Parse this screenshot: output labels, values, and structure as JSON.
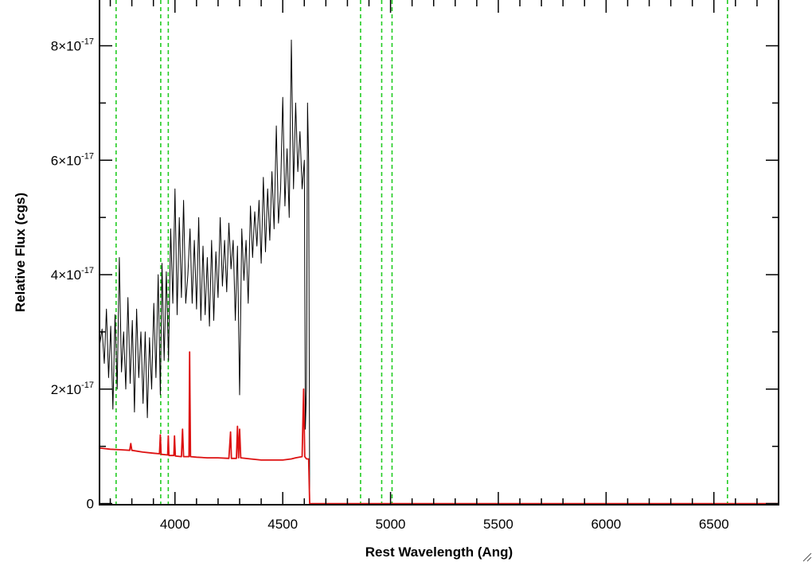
{
  "chart_data": {
    "type": "line",
    "title": "",
    "xlabel": "Rest Wavelength (Ang)",
    "ylabel": "Relative Flux (cgs)",
    "xlim": [
      3650,
      6800
    ],
    "ylim": [
      -2e-19,
      8.8e-17
    ],
    "x_ticks": [
      4000,
      4500,
      5000,
      5500,
      6000,
      6500
    ],
    "x_tick_labels": [
      "4000",
      "4500",
      "5000",
      "5500",
      "6000",
      "6500"
    ],
    "y_ticks": [
      {
        "value": 0,
        "mantissa": "0",
        "exponent": ""
      },
      {
        "value": 2e-17,
        "mantissa": "2×10",
        "exponent": "-17"
      },
      {
        "value": 4e-17,
        "mantissa": "4×10",
        "exponent": "-17"
      },
      {
        "value": 6e-17,
        "mantissa": "6×10",
        "exponent": "-17"
      },
      {
        "value": 8e-17,
        "mantissa": "8×10",
        "exponent": "-17"
      }
    ],
    "x_minor_step": 100,
    "y_minor_step": 1e-17,
    "grid": false,
    "legend": "none",
    "vlines": {
      "color": "#22cc22",
      "style": "dashed",
      "x": [
        3727,
        3934,
        3969,
        4861,
        4959,
        5007,
        6563
      ]
    },
    "series": [
      {
        "color": "#000000",
        "points": [
          [
            3650,
            2.75e-17
          ],
          [
            3662,
            3.05e-17
          ],
          [
            3672,
            2.45e-17
          ],
          [
            3682,
            3.4e-17
          ],
          [
            3692,
            2.2e-17
          ],
          [
            3702,
            3.1e-17
          ],
          [
            3712,
            1.65e-17
          ],
          [
            3722,
            3.3e-17
          ],
          [
            3732,
            2e-17
          ],
          [
            3742,
            4.3e-17
          ],
          [
            3752,
            2.3e-17
          ],
          [
            3762,
            3e-17
          ],
          [
            3772,
            2e-17
          ],
          [
            3782,
            3.6e-17
          ],
          [
            3792,
            2.1e-17
          ],
          [
            3802,
            3.2e-17
          ],
          [
            3812,
            1.6e-17
          ],
          [
            3822,
            3.4e-17
          ],
          [
            3832,
            2.2e-17
          ],
          [
            3842,
            3e-17
          ],
          [
            3852,
            1.75e-17
          ],
          [
            3862,
            3e-17
          ],
          [
            3872,
            1.5e-17
          ],
          [
            3882,
            2.9e-17
          ],
          [
            3892,
            2e-17
          ],
          [
            3902,
            3.5e-17
          ],
          [
            3912,
            2.2e-17
          ],
          [
            3922,
            4e-17
          ],
          [
            3932,
            1.9e-17
          ],
          [
            3940,
            4.2e-17
          ],
          [
            3950,
            2.5e-17
          ],
          [
            3960,
            4.05e-17
          ],
          [
            3970,
            2.5e-17
          ],
          [
            3980,
            4.8e-17
          ],
          [
            3990,
            3.5e-17
          ],
          [
            4000,
            5.5e-17
          ],
          [
            4010,
            3.3e-17
          ],
          [
            4020,
            5e-17
          ],
          [
            4030,
            3.6e-17
          ],
          [
            4040,
            5.3e-17
          ],
          [
            4050,
            3.5e-17
          ],
          [
            4060,
            4e-17
          ],
          [
            4070,
            4.8e-17
          ],
          [
            4080,
            3.5e-17
          ],
          [
            4090,
            4.6e-17
          ],
          [
            4100,
            3.4e-17
          ],
          [
            4110,
            5e-17
          ],
          [
            4120,
            3.2e-17
          ],
          [
            4130,
            4.5e-17
          ],
          [
            4140,
            3.3e-17
          ],
          [
            4150,
            4.3e-17
          ],
          [
            4160,
            3.1e-17
          ],
          [
            4170,
            4.6e-17
          ],
          [
            4180,
            3.2e-17
          ],
          [
            4190,
            4.4e-17
          ],
          [
            4200,
            3.6e-17
          ],
          [
            4210,
            5e-17
          ],
          [
            4220,
            3.8e-17
          ],
          [
            4230,
            4.6e-17
          ],
          [
            4240,
            3.7e-17
          ],
          [
            4250,
            4.9e-17
          ],
          [
            4260,
            4.1e-17
          ],
          [
            4270,
            4.6e-17
          ],
          [
            4280,
            3.2e-17
          ],
          [
            4290,
            4.5e-17
          ],
          [
            4300,
            1.9e-17
          ],
          [
            4310,
            4.8e-17
          ],
          [
            4320,
            3.9e-17
          ],
          [
            4330,
            4.6e-17
          ],
          [
            4340,
            3.5e-17
          ],
          [
            4350,
            5.2e-17
          ],
          [
            4360,
            4.3e-17
          ],
          [
            4370,
            5.1e-17
          ],
          [
            4380,
            4.5e-17
          ],
          [
            4390,
            5.3e-17
          ],
          [
            4400,
            4.2e-17
          ],
          [
            4410,
            5.7e-17
          ],
          [
            4420,
            4.4e-17
          ],
          [
            4430,
            5.5e-17
          ],
          [
            4440,
            4.6e-17
          ],
          [
            4450,
            5.8e-17
          ],
          [
            4460,
            4.8e-17
          ],
          [
            4470,
            6.6e-17
          ],
          [
            4480,
            4.9e-17
          ],
          [
            4490,
            5.5e-17
          ],
          [
            4500,
            7.1e-17
          ],
          [
            4510,
            5.2e-17
          ],
          [
            4520,
            6.2e-17
          ],
          [
            4530,
            5e-17
          ],
          [
            4540,
            8.1e-17
          ],
          [
            4550,
            5.5e-17
          ],
          [
            4560,
            7e-17
          ],
          [
            4570,
            5.8e-17
          ],
          [
            4580,
            6.5e-17
          ],
          [
            4590,
            5.5e-17
          ],
          [
            4600,
            6e-17
          ],
          [
            4605,
            1.3e-17
          ],
          [
            4610,
            2e-17
          ],
          [
            4615,
            7e-17
          ],
          [
            4620,
            6e-17
          ],
          [
            4625,
            0
          ]
        ]
      },
      {
        "color": "#dd1111",
        "points": [
          [
            3650,
            9.7e-18
          ],
          [
            3700,
            9.5e-18
          ],
          [
            3750,
            9.4e-18
          ],
          [
            3790,
            9.3e-18
          ],
          [
            3795,
            1.05e-17
          ],
          [
            3800,
            9.3e-18
          ],
          [
            3850,
            9e-18
          ],
          [
            3900,
            8.8e-18
          ],
          [
            3928,
            8.7e-18
          ],
          [
            3932,
            1.2e-17
          ],
          [
            3936,
            8.6e-18
          ],
          [
            3966,
            8.5e-18
          ],
          [
            3969,
            1.18e-17
          ],
          [
            3972,
            8.4e-18
          ],
          [
            3995,
            8.4e-18
          ],
          [
            3998,
            1.18e-17
          ],
          [
            4002,
            8.3e-18
          ],
          [
            4030,
            8.2e-18
          ],
          [
            4035,
            1.3e-17
          ],
          [
            4040,
            8.2e-18
          ],
          [
            4065,
            8.2e-18
          ],
          [
            4068,
            2.65e-17
          ],
          [
            4072,
            8.2e-18
          ],
          [
            4100,
            8.1e-18
          ],
          [
            4150,
            8e-18
          ],
          [
            4200,
            8e-18
          ],
          [
            4250,
            7.9e-18
          ],
          [
            4258,
            1.25e-17
          ],
          [
            4262,
            7.9e-18
          ],
          [
            4285,
            7.9e-18
          ],
          [
            4290,
            1.35e-17
          ],
          [
            4295,
            8e-18
          ],
          [
            4300,
            1.3e-17
          ],
          [
            4305,
            8e-18
          ],
          [
            4350,
            7.8e-18
          ],
          [
            4400,
            7.6e-18
          ],
          [
            4450,
            7.6e-18
          ],
          [
            4500,
            7.6e-18
          ],
          [
            4540,
            7.8e-18
          ],
          [
            4560,
            8e-18
          ],
          [
            4590,
            8.2e-18
          ],
          [
            4597,
            2e-17
          ],
          [
            4602,
            8.2e-18
          ],
          [
            4610,
            7.8e-18
          ],
          [
            4620,
            7.8e-18
          ],
          [
            4625,
            0
          ],
          [
            5000,
            0
          ],
          [
            5500,
            0
          ],
          [
            6000,
            0
          ],
          [
            6500,
            0
          ],
          [
            6800,
            0
          ]
        ]
      }
    ]
  }
}
